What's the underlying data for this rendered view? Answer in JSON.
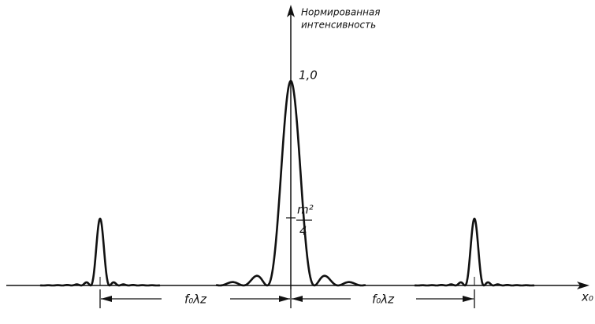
{
  "axis_label": [
    "Нормированная",
    "интенсивность"
  ],
  "peak_label": "1,0",
  "level_label": {
    "numerator": "m²",
    "denominator": "4"
  },
  "x_axis_label": "x₀",
  "spacing_labels": [
    "f₀λz",
    "f₀λz"
  ]
}
